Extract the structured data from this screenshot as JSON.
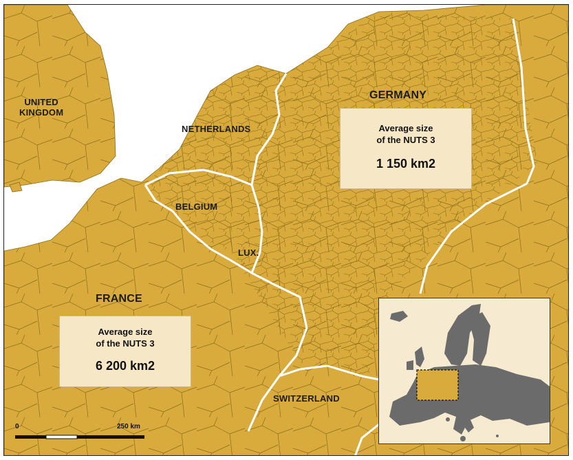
{
  "countries": {
    "united_kingdom": "UNITED\nKINGDOM",
    "netherlands": "NETHERLANDS",
    "germany": "GERMANY",
    "belgium": "BELGIUM",
    "luxembourg": "LUX.",
    "france": "FRANCE",
    "switzerland": "SWITZERLAND"
  },
  "germany_box": {
    "title_line1": "Average size",
    "title_line2": "of the NUTS 3",
    "value": "1 150 km2"
  },
  "france_box": {
    "title_line1": "Average size",
    "title_line2": "of the NUTS 3",
    "value": "6 200 km2"
  },
  "scale": {
    "start_label": "0",
    "end_label": "250 km"
  },
  "colors": {
    "land": "#d9aa3c",
    "sea": "#ffffff",
    "region_border": "#8a6b18",
    "country_border": "#ffffff",
    "box_fill": "#f6e8c6",
    "inset_land": "#6b6b6b",
    "inset_highlight": "#d9aa3c"
  }
}
